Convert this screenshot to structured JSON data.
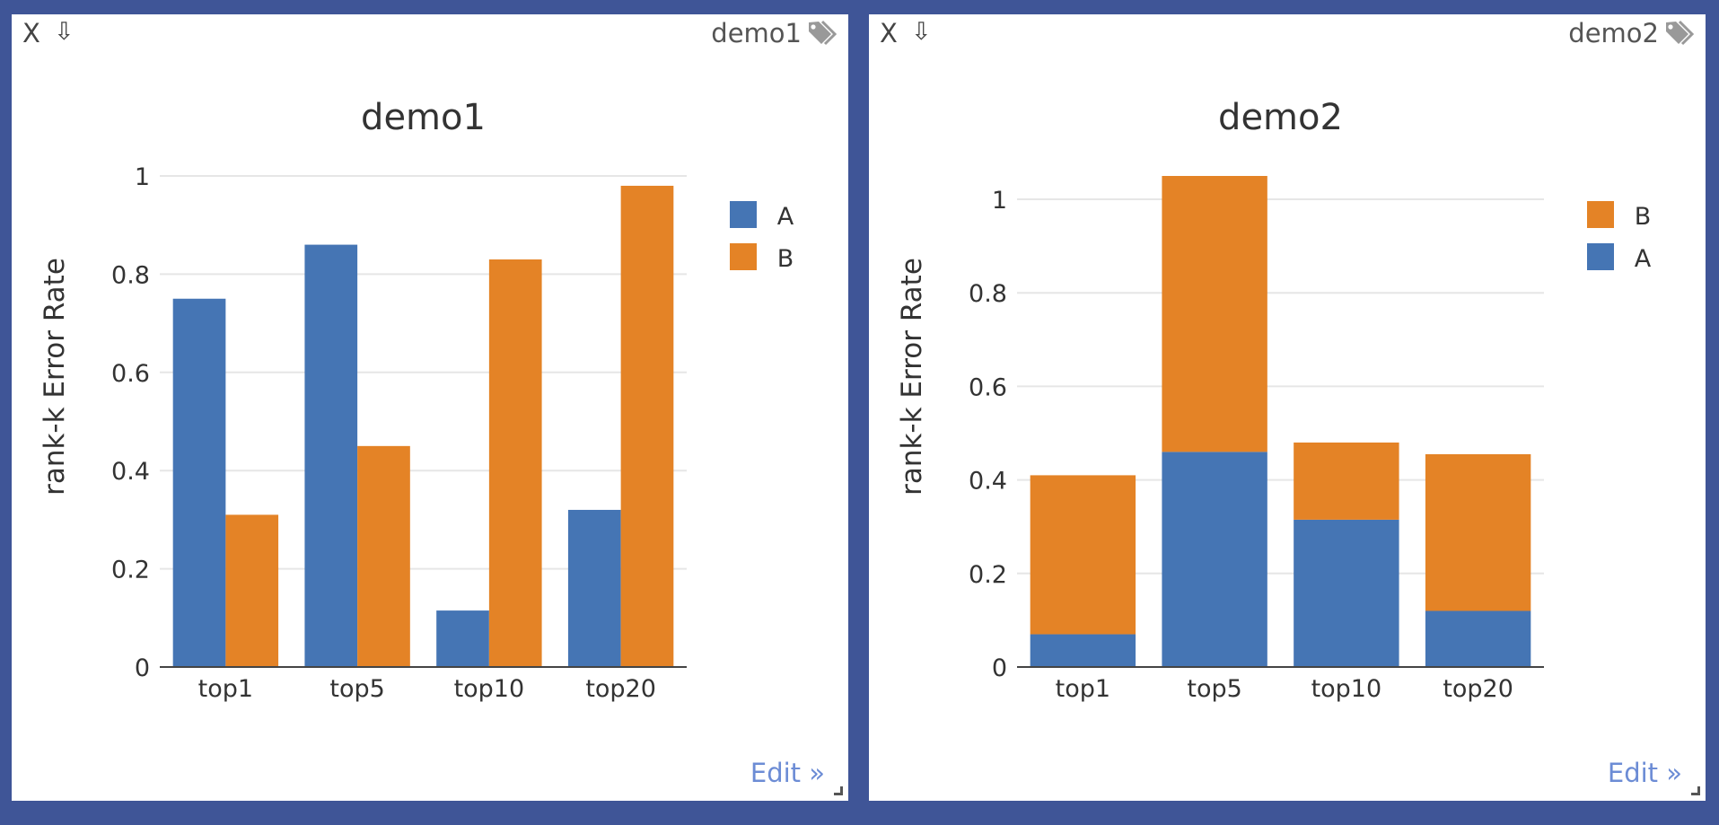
{
  "panels": [
    {
      "tag_name": "demo1",
      "close_label": "X",
      "download_glyph": "⇩",
      "edit_label": "Edit »",
      "icons": {
        "close": "close-icon",
        "download": "download-icon",
        "tag": "tag-icon"
      }
    },
    {
      "tag_name": "demo2",
      "close_label": "X",
      "download_glyph": "⇩",
      "edit_label": "Edit »",
      "icons": {
        "close": "close-icon",
        "download": "download-icon",
        "tag": "tag-icon"
      }
    }
  ],
  "colors": {
    "A": "#4575b4",
    "B": "#e48326",
    "background": "#3f5597",
    "edit_link": "#6c8cd5"
  },
  "chart_data": [
    {
      "type": "bar",
      "barmode": "group",
      "title": "demo1",
      "xlabel": "",
      "ylabel": "rank-k  Error Rate",
      "categories": [
        "top1",
        "top5",
        "top10",
        "top20"
      ],
      "series": [
        {
          "name": "A",
          "values": [
            0.75,
            0.86,
            0.115,
            0.32
          ]
        },
        {
          "name": "B",
          "values": [
            0.31,
            0.45,
            0.83,
            0.98
          ]
        }
      ],
      "legend_order": [
        "A",
        "B"
      ],
      "ylim": [
        0,
        1.0
      ],
      "yticks": [
        0,
        0.2,
        0.4,
        0.6,
        0.8,
        1
      ],
      "ytick_labels": [
        "0",
        "0.2",
        "0.4",
        "0.6",
        "0.8",
        "1"
      ],
      "grid": true,
      "legend_position": "top-right"
    },
    {
      "type": "bar",
      "barmode": "stack",
      "title": "demo2",
      "xlabel": "",
      "ylabel": "rank-k  Error Rate",
      "categories": [
        "top1",
        "top5",
        "top10",
        "top20"
      ],
      "series": [
        {
          "name": "A",
          "values": [
            0.07,
            0.46,
            0.315,
            0.12
          ]
        },
        {
          "name": "B",
          "values": [
            0.34,
            0.59,
            0.165,
            0.335
          ]
        }
      ],
      "legend_order": [
        "B",
        "A"
      ],
      "ylim": [
        0,
        1.05
      ],
      "yticks": [
        0,
        0.2,
        0.4,
        0.6,
        0.8,
        1
      ],
      "ytick_labels": [
        "0",
        "0.2",
        "0.4",
        "0.6",
        "0.8",
        "1"
      ],
      "grid": true,
      "legend_position": "top-right"
    }
  ]
}
